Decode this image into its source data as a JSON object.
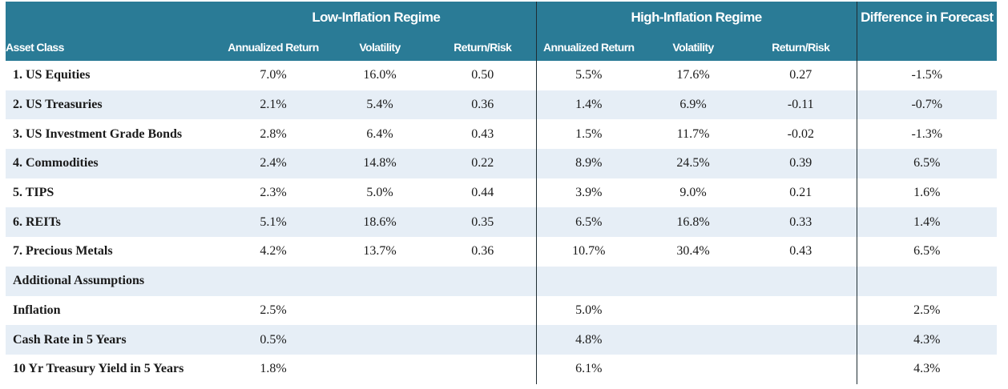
{
  "chart_data": {
    "type": "table",
    "group_headers": [
      "Low-Inflation Regime",
      "High-Inflation Regime",
      "Difference in Forecast"
    ],
    "columns": [
      "Asset Class",
      "Annualized Return",
      "Volatility",
      "Return/Risk",
      "Annualized Return",
      "Volatility",
      "Return/Risk"
    ],
    "rows": [
      {
        "label": "1. US Equities",
        "values": [
          "7.0%",
          "16.0%",
          "0.50",
          "5.5%",
          "17.6%",
          "0.27",
          "-1.5%"
        ]
      },
      {
        "label": "2. US Treasuries",
        "values": [
          "2.1%",
          "5.4%",
          "0.36",
          "1.4%",
          "6.9%",
          "-0.11",
          "-0.7%"
        ]
      },
      {
        "label": "3. US Investment Grade Bonds",
        "values": [
          "2.8%",
          "6.4%",
          "0.43",
          "1.5%",
          "11.7%",
          "-0.02",
          "-1.3%"
        ]
      },
      {
        "label": "4. Commodities",
        "values": [
          "2.4%",
          "14.8%",
          "0.22",
          "8.9%",
          "24.5%",
          "0.39",
          "6.5%"
        ]
      },
      {
        "label": "5. TIPS",
        "values": [
          "2.3%",
          "5.0%",
          "0.44",
          "3.9%",
          "9.0%",
          "0.21",
          "1.6%"
        ]
      },
      {
        "label": "6. REITs",
        "values": [
          "5.1%",
          "18.6%",
          "0.35",
          "6.5%",
          "16.8%",
          "0.33",
          "1.4%"
        ]
      },
      {
        "label": "7. Precious Metals",
        "values": [
          "4.2%",
          "13.7%",
          "0.36",
          "10.7%",
          "30.4%",
          "0.43",
          "6.5%"
        ]
      },
      {
        "label": "Additional Assumptions",
        "values": [
          "",
          "",
          "",
          "",
          "",
          "",
          ""
        ]
      },
      {
        "label": "Inflation",
        "values": [
          "2.5%",
          "",
          "",
          "5.0%",
          "",
          "",
          "2.5%"
        ]
      },
      {
        "label": "Cash Rate in 5 Years",
        "values": [
          "0.5%",
          "",
          "",
          "4.8%",
          "",
          "",
          "4.3%"
        ]
      },
      {
        "label": "10 Yr Treasury Yield in 5 Years",
        "values": [
          "1.8%",
          "",
          "",
          "6.1%",
          "",
          "",
          "4.3%"
        ]
      }
    ]
  }
}
